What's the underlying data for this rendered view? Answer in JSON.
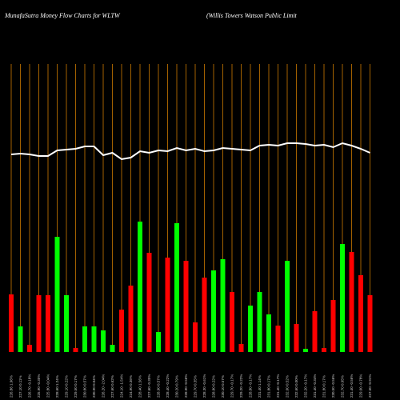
{
  "chart_data": {
    "type": "money-flow",
    "title": "MunafaSutra  Money Flow  Charts for WLTW",
    "subtitle": "(Willis Towers Watson  Public Limit",
    "categories": [
      "226.86 1.96%",
      "227.10 0.11%",
      "226.70 -0.18%",
      "225.90 -0.35%",
      "225.80 -0.04%",
      "228.60 1.24%",
      "229.10 0.22%",
      "229.50 0.17%",
      "230.80 0.57%",
      "230.90 0.04%",
      "226.20 -2.04%",
      "227.60 0.62%",
      "224.10 -1.54%",
      "224.90 0.36%",
      "228.40 1.56%",
      "227.60 -0.35%",
      "228.90 0.57%",
      "228.40 -0.22%",
      "230.20 0.79%",
      "228.90 -0.56%",
      "229.70 0.35%",
      "228.30 -0.61%",
      "228.80 0.22%",
      "230.10 0.57%",
      "229.70 -0.17%",
      "229.20 -0.22%",
      "228.80 -0.17%",
      "231.40 1.14%",
      "231.80 0.17%",
      "231.40 -0.17%",
      "232.60 0.52%",
      "232.60 0.00%",
      "232.20 -0.17%",
      "231.40 -0.34%",
      "231.80 0.17%",
      "230.50 -0.56%",
      "232.70 0.95%",
      "231.40 -0.56%",
      "229.60 -0.78%",
      "227.50 -0.91%"
    ],
    "bars": {
      "values": [
        72,
        32,
        9,
        71,
        71,
        144,
        71,
        5,
        32,
        32,
        27,
        9,
        53,
        83,
        163,
        124,
        25,
        118,
        161,
        114,
        37,
        93,
        102,
        116,
        75,
        10,
        58,
        75,
        47,
        33,
        114,
        35,
        4,
        51,
        5,
        65,
        135,
        125,
        96,
        71
      ],
      "colors": [
        "#ff0000",
        "#00ff00",
        "#ff0000",
        "#ff0000",
        "#ff0000",
        "#00ff00",
        "#00ff00",
        "#ff0000",
        "#00ff00",
        "#00ff00",
        "#00ff00",
        "#00ff00",
        "#ff0000",
        "#ff0000",
        "#00ff00",
        "#ff0000",
        "#00ff00",
        "#ff0000",
        "#00ff00",
        "#ff0000",
        "#ff0000",
        "#ff0000",
        "#00ff00",
        "#00ff00",
        "#ff0000",
        "#ff0000",
        "#00ff00",
        "#00ff00",
        "#00ff00",
        "#ff0000",
        "#00ff00",
        "#ff0000",
        "#00ff00",
        "#ff0000",
        "#ff0000",
        "#ff0000",
        "#00ff00",
        "#ff0000",
        "#ff0000",
        "#ff0000"
      ]
    },
    "line": {
      "color": "#ffffff",
      "values": [
        247,
        248,
        247,
        245,
        245,
        252,
        253,
        254,
        257,
        257,
        246,
        249,
        241,
        243,
        251,
        249,
        252,
        251,
        255,
        252,
        254,
        251,
        252,
        255,
        254,
        253,
        252,
        258,
        259,
        258,
        261,
        261,
        260,
        258,
        259,
        256,
        261,
        258,
        254,
        249
      ]
    },
    "ylim": [
      0,
      360
    ],
    "gridline_color": "#cc7a00"
  }
}
